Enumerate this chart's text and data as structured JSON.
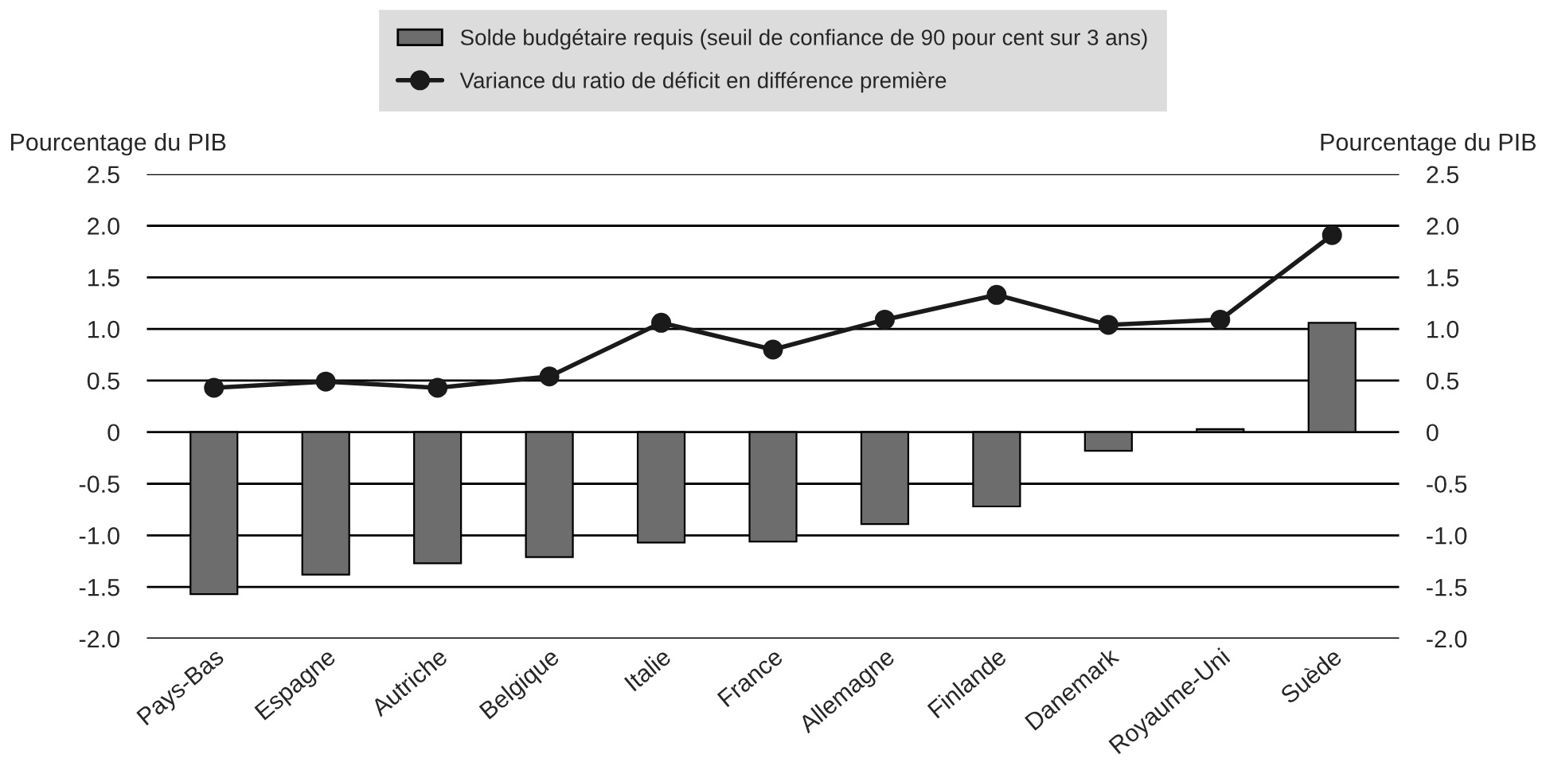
{
  "chart_data": {
    "type": "bar",
    "categories": [
      "Pays-Bas",
      "Espagne",
      "Autriche",
      "Belgique",
      "Italie",
      "France",
      "Allemagne",
      "Finlande",
      "Danemark",
      "Royaume-Uni",
      "Suède"
    ],
    "series": [
      {
        "name": "Solde budgétaire requis (seuil de confiance de 90 pour cent sur 3 ans)",
        "color": "#6d6d6d",
        "values": [
          -1.57,
          -1.38,
          -1.27,
          -1.21,
          -1.07,
          -1.06,
          -0.89,
          -0.72,
          -0.18,
          0.03,
          1.06
        ]
      },
      {
        "name": "Variance du ratio de déficit en différence première",
        "type": "line",
        "color": "#1a1a1a",
        "marker": "circle",
        "values": [
          0.43,
          0.49,
          0.43,
          0.54,
          1.06,
          0.8,
          1.09,
          1.33,
          1.04,
          1.09,
          1.91
        ]
      }
    ],
    "ylabel": "Pourcentage du PIB",
    "y2label": "Pourcentage du PIB",
    "ylim": [
      -2.0,
      2.5
    ],
    "yticks": [
      {
        "value": -2,
        "label": "-2.0"
      },
      -1.5,
      {
        "value": -1,
        "label": "-1.0"
      },
      -0.5,
      0,
      0.5,
      {
        "value": 1,
        "label": "1.0"
      },
      1.5,
      {
        "value": 2,
        "label": "2.0"
      },
      2.5
    ],
    "y2lim": [
      -2.0,
      2.5
    ],
    "y2ticks": [
      {
        "value": -2,
        "label": "-2.0"
      },
      -1.5,
      {
        "value": -1,
        "label": "-1.0"
      },
      -0.5,
      0,
      0.5,
      {
        "value": 1,
        "label": "1.0"
      },
      1.5,
      {
        "value": 2,
        "label": "2.0"
      },
      2.5
    ],
    "grid": "y",
    "legend": "top"
  }
}
